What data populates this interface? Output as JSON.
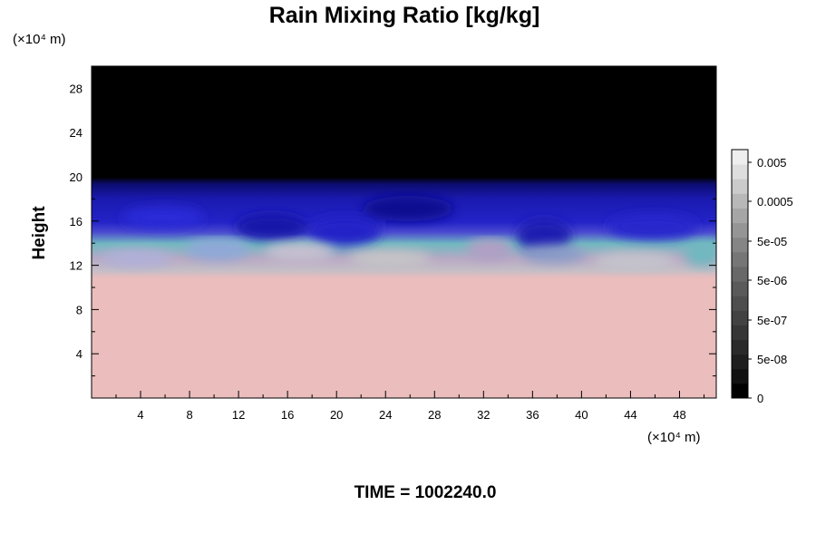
{
  "chart_data": {
    "type": "heatmap",
    "title": "Rain Mixing Ratio [kg/kg]",
    "ylabel": "Height",
    "x_unit": "(×10⁴ m)",
    "y_unit": "(×10⁴ m)",
    "x_range": [
      0,
      51
    ],
    "y_range": [
      0,
      30
    ],
    "x_ticks": [
      "4",
      "8",
      "12",
      "16",
      "20",
      "24",
      "28",
      "32",
      "36",
      "40",
      "44",
      "48"
    ],
    "y_ticks": [
      "4",
      "8",
      "12",
      "16",
      "20",
      "24",
      "28"
    ],
    "x_tick_values": [
      4,
      8,
      12,
      16,
      20,
      24,
      28,
      32,
      36,
      40,
      44,
      48
    ],
    "y_tick_values": [
      4,
      8,
      12,
      16,
      20,
      24,
      28
    ],
    "colorbar": {
      "scale": "log",
      "labels": [
        "0.005",
        "0.0005",
        "5e-05",
        "5e-06",
        "5e-07",
        "5e-08",
        "0"
      ],
      "label_values": [
        0.005,
        0.0005,
        5e-05,
        5e-06,
        5e-07,
        5e-08,
        0
      ],
      "levels": 16,
      "colors": [
        "#000000",
        "#111111",
        "#1e1e1e",
        "#2a2a2a",
        "#363636",
        "#424242",
        "#4e4e4e",
        "#5a5a5a",
        "#686868",
        "#767676",
        "#858585",
        "#959595",
        "#a6a6a6",
        "#b8b8b8",
        "#cbcbcb",
        "#dedede",
        "#eeeeee"
      ]
    },
    "field_layers": [
      {
        "from_height": 0,
        "to_height": 11,
        "value": "uniform",
        "color": "#ebbdbd"
      },
      {
        "from_height": 11,
        "to_height": 14,
        "value": "mixed",
        "color": "#bdbdc8"
      },
      {
        "from_height": 14,
        "to_height": 19.5,
        "value": "mixed",
        "color": "#1515b8"
      },
      {
        "from_height": 19.5,
        "to_height": 30,
        "value": "0",
        "color": "#000000"
      }
    ],
    "grid": false,
    "legend": "right"
  },
  "footer": {
    "time_label": "TIME = 1002240.0"
  }
}
